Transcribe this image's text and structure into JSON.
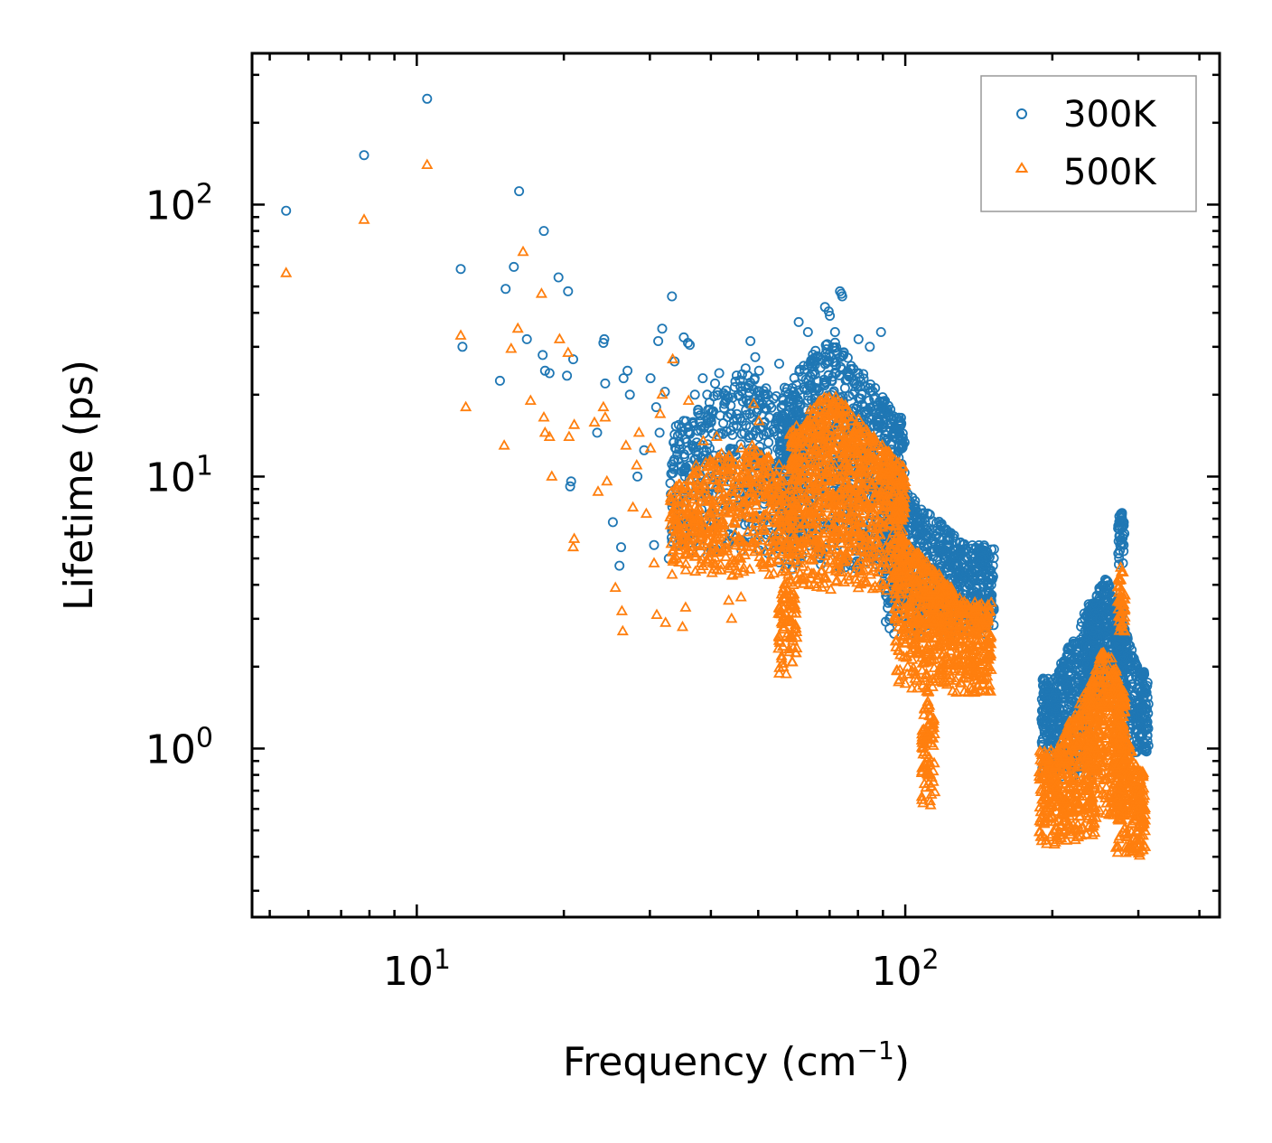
{
  "chart_data": {
    "type": "scatter",
    "title": "",
    "xlabel": "Frequency (cm",
    "xlabel_sup": "−1",
    "xlabel_end": ")",
    "ylabel": "Lifetime (ps)",
    "xscale": "log",
    "yscale": "log",
    "xlim": [
      4.6,
      440
    ],
    "ylim": [
      0.24,
      360
    ],
    "x_ticks": [
      {
        "value": 10,
        "base": "10",
        "exp": "1"
      },
      {
        "value": 100,
        "base": "10",
        "exp": "2"
      }
    ],
    "y_ticks": [
      {
        "value": 1,
        "base": "10",
        "exp": "0"
      },
      {
        "value": 10,
        "base": "10",
        "exp": "1"
      },
      {
        "value": 100,
        "base": "10",
        "exp": "2"
      }
    ],
    "legend_position": "top-right",
    "series": [
      {
        "name": "300K",
        "marker": "circle",
        "color": "#1f77b4",
        "points": [
          [
            5.4,
            95
          ],
          [
            7.8,
            152
          ],
          [
            10.5,
            245
          ],
          [
            12.3,
            58
          ],
          [
            12.4,
            30
          ],
          [
            14.8,
            22.5
          ],
          [
            15.2,
            49
          ],
          [
            15.8,
            59
          ],
          [
            16.2,
            112
          ],
          [
            16.8,
            32
          ],
          [
            18.2,
            80
          ],
          [
            18.1,
            28
          ],
          [
            18.3,
            24.5
          ],
          [
            18.7,
            24
          ],
          [
            19.5,
            54
          ],
          [
            20.3,
            23.5
          ],
          [
            20.4,
            48
          ],
          [
            20.9,
            27
          ],
          [
            20.6,
            9.2
          ],
          [
            20.7,
            9.6
          ],
          [
            23.4,
            14.5
          ],
          [
            24.1,
            31
          ],
          [
            24.2,
            32
          ],
          [
            24.3,
            22
          ],
          [
            25.2,
            6.8
          ],
          [
            26.0,
            4.7
          ],
          [
            26.2,
            5.5
          ],
          [
            26.5,
            23
          ],
          [
            27.0,
            24.5
          ],
          [
            27.3,
            20
          ],
          [
            28.3,
            10
          ],
          [
            29.2,
            12.5
          ],
          [
            30.1,
            23
          ],
          [
            30.6,
            5.6
          ],
          [
            30.9,
            18
          ],
          [
            31.2,
            31.5
          ],
          [
            31.4,
            14.5
          ],
          [
            31.8,
            35
          ],
          [
            32.2,
            20.5
          ],
          [
            32.8,
            5
          ],
          [
            33.3,
            46
          ],
          [
            33.7,
            26.5
          ],
          [
            34.4,
            15.5
          ],
          [
            35.2,
            32.5
          ],
          [
            35.6,
            16
          ],
          [
            35.9,
            31
          ],
          [
            36.2,
            30.5
          ],
          [
            36.6,
            13
          ],
          [
            37.1,
            20
          ],
          [
            38.5,
            23
          ],
          [
            39.3,
            20
          ],
          [
            40.8,
            22
          ],
          [
            41.6,
            24
          ],
          [
            42.6,
            18.5
          ],
          [
            44.3,
            19.5
          ],
          [
            47.1,
            25
          ],
          [
            48.2,
            31.5
          ],
          [
            49.3,
            27.5
          ],
          [
            50.2,
            24.5
          ],
          [
            55.2,
            26
          ],
          [
            60.5,
            37
          ],
          [
            63.2,
            34
          ],
          [
            65.5,
            29
          ],
          [
            68.5,
            42
          ],
          [
            69.7,
            40.5
          ],
          [
            70.1,
            39
          ],
          [
            71.8,
            34
          ],
          [
            73.5,
            48
          ],
          [
            74.0,
            47
          ],
          [
            74.3,
            46
          ],
          [
            80.2,
            32
          ],
          [
            84.6,
            30
          ],
          [
            89.2,
            34
          ]
        ],
        "clusters": [
          {
            "xmin": 33,
            "xmax": 62,
            "ymin": 5.2,
            "ymax": 25,
            "n": 520,
            "peak": 0.55
          },
          {
            "xmin": 55,
            "xmax": 100,
            "ymin": 4.5,
            "ymax": 33,
            "n": 900,
            "peak": 0.4
          },
          {
            "xmin": 90,
            "xmax": 152,
            "ymin": 2.6,
            "ymax": 10.5,
            "n": 700,
            "peak": 0.0
          },
          {
            "xmin": 190,
            "xmax": 240,
            "ymin": 0.78,
            "ymax": 3.6,
            "n": 420,
            "peak": 1.0
          },
          {
            "xmin": 235,
            "xmax": 280,
            "ymin": 1.5,
            "ymax": 4.3,
            "n": 380,
            "peak": 0.5
          },
          {
            "xmin": 270,
            "xmax": 315,
            "ymin": 0.95,
            "ymax": 3.4,
            "n": 260,
            "peak": 0.0
          },
          {
            "xmin": 272,
            "xmax": 281,
            "ymin": 4.5,
            "ymax": 7.9,
            "n": 40,
            "peak": 0.5
          }
        ]
      },
      {
        "name": "500K",
        "marker": "triangle",
        "color": "#ff7f0e",
        "points": [
          [
            5.4,
            56
          ],
          [
            7.8,
            88
          ],
          [
            10.5,
            140
          ],
          [
            12.3,
            33
          ],
          [
            12.6,
            18
          ],
          [
            15.1,
            13
          ],
          [
            15.6,
            29.5
          ],
          [
            16.1,
            35
          ],
          [
            16.5,
            67
          ],
          [
            17.1,
            19
          ],
          [
            18.0,
            47
          ],
          [
            18.2,
            16.5
          ],
          [
            18.3,
            14.5
          ],
          [
            18.7,
            14
          ],
          [
            18.9,
            10
          ],
          [
            19.6,
            32
          ],
          [
            20.4,
            28.5
          ],
          [
            20.5,
            14
          ],
          [
            21.0,
            15.5
          ],
          [
            20.9,
            5.5
          ],
          [
            21.0,
            5.9
          ],
          [
            23.1,
            15.8
          ],
          [
            23.5,
            8.8
          ],
          [
            24.1,
            18
          ],
          [
            24.3,
            16.5
          ],
          [
            24.5,
            9.6
          ],
          [
            25.5,
            3.9
          ],
          [
            26.3,
            3.2
          ],
          [
            26.4,
            2.7
          ],
          [
            26.8,
            13
          ],
          [
            27.7,
            7.7
          ],
          [
            28.2,
            11
          ],
          [
            28.5,
            14.5
          ],
          [
            29.5,
            7.3
          ],
          [
            30.1,
            12.7
          ],
          [
            30.6,
            4.8
          ],
          [
            31.0,
            3.1
          ],
          [
            31.5,
            17
          ],
          [
            31.8,
            20
          ],
          [
            32.3,
            2.9
          ],
          [
            33.4,
            27
          ],
          [
            34.0,
            5
          ],
          [
            34.4,
            8.3
          ],
          [
            35.0,
            2.8
          ],
          [
            35.5,
            3.3
          ],
          [
            36.0,
            19
          ],
          [
            37.3,
            11
          ],
          [
            38.6,
            13.5
          ],
          [
            39.5,
            10
          ],
          [
            41.1,
            14
          ],
          [
            43.5,
            3.5
          ],
          [
            44.1,
            3.0
          ],
          [
            46.1,
            3.6
          ],
          [
            48.9,
            18.5
          ],
          [
            50.2,
            16
          ]
        ],
        "clusters": [
          {
            "xmin": 33,
            "xmax": 58,
            "ymin": 4.2,
            "ymax": 14,
            "n": 520,
            "peak": 0.6
          },
          {
            "xmin": 55,
            "xmax": 60,
            "ymin": 1.8,
            "ymax": 4.5,
            "n": 90,
            "peak": 0.5
          },
          {
            "xmin": 58,
            "xmax": 100,
            "ymin": 3.8,
            "ymax": 21,
            "n": 1000,
            "peak": 0.35
          },
          {
            "xmin": 95,
            "xmax": 150,
            "ymin": 1.6,
            "ymax": 6.5,
            "n": 750,
            "peak": 0.0
          },
          {
            "xmin": 108,
            "xmax": 115,
            "ymin": 0.6,
            "ymax": 1.7,
            "n": 80,
            "peak": 0.5
          },
          {
            "xmin": 188,
            "xmax": 245,
            "ymin": 0.44,
            "ymax": 1.9,
            "n": 420,
            "peak": 1.0
          },
          {
            "xmin": 235,
            "xmax": 282,
            "ymin": 0.55,
            "ymax": 2.5,
            "n": 420,
            "peak": 0.5
          },
          {
            "xmin": 270,
            "xmax": 310,
            "ymin": 0.4,
            "ymax": 1.5,
            "n": 260,
            "peak": 0.0
          },
          {
            "xmin": 272,
            "xmax": 282,
            "ymin": 2.5,
            "ymax": 4.9,
            "n": 45,
            "peak": 0.5
          }
        ]
      }
    ]
  }
}
